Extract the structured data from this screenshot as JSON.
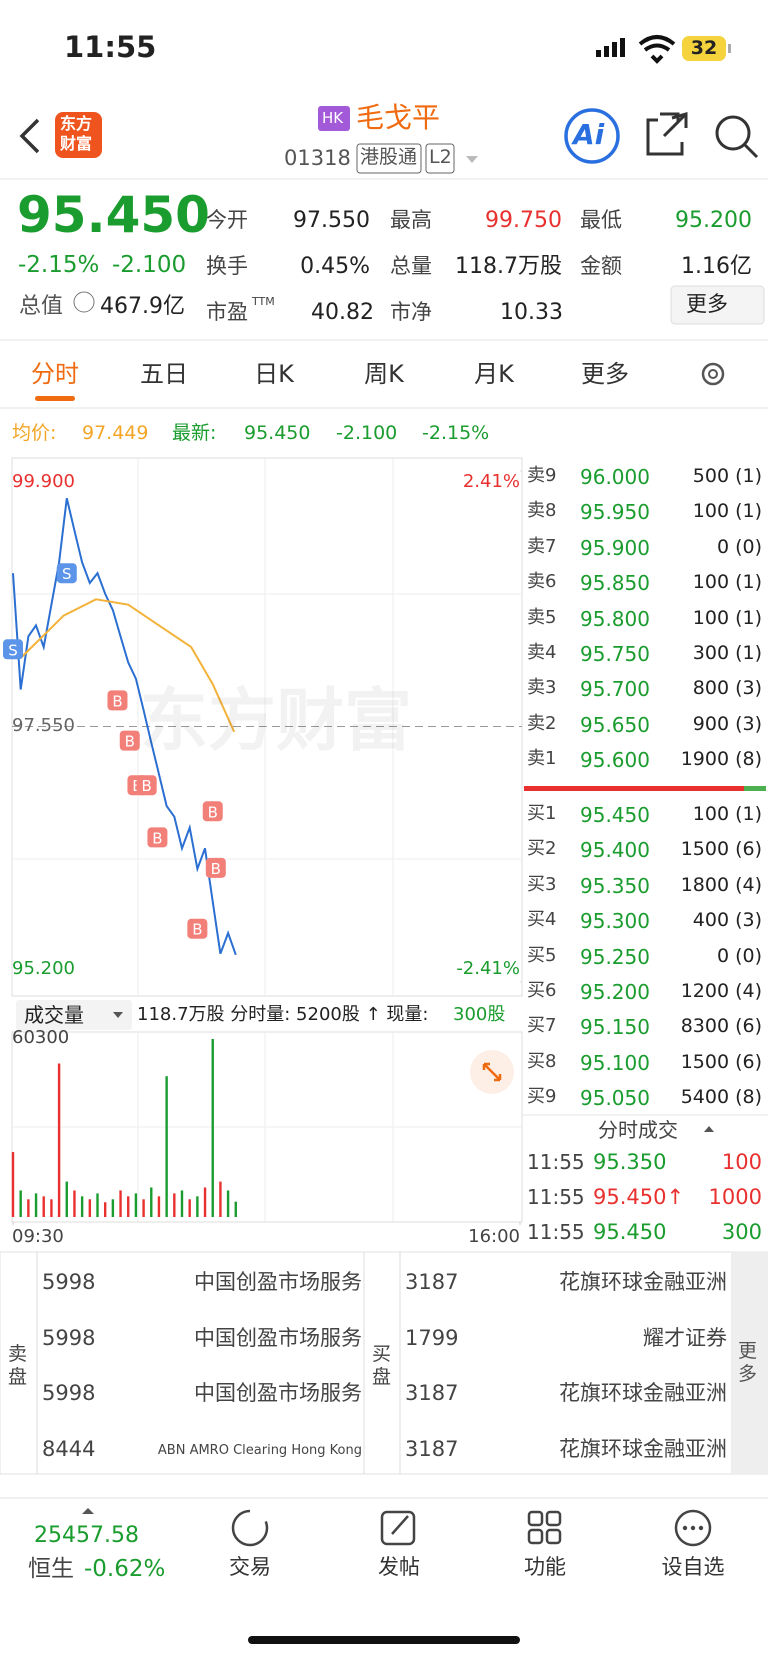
{
  "status_bar": {
    "time": "11:55",
    "battery": "32"
  },
  "header": {
    "logo": [
      "东方",
      "财富"
    ],
    "market_badge": "HK",
    "name": "毛戈平",
    "code": "01318",
    "tag": "港股通",
    "level": "L2",
    "ai": "Ai"
  },
  "quote": {
    "price": "95.450",
    "change_pct": "-2.15%",
    "change": "-2.100",
    "market_cap_label": "总值",
    "market_cap": "467.9亿",
    "stats": [
      {
        "label": "今开",
        "value": "97.550"
      },
      {
        "label": "最高",
        "value": "99.750"
      },
      {
        "label": "最低",
        "value": "95.200"
      },
      {
        "label": "换手",
        "value": "0.45%"
      },
      {
        "label": "总量",
        "value": "118.7万股"
      },
      {
        "label": "金额",
        "value": "1.16亿"
      },
      {
        "label": "市盈",
        "sup": "TTM",
        "value": "40.82"
      },
      {
        "label": "市净",
        "value": "10.33"
      }
    ],
    "more": "更多"
  },
  "tabs": [
    "分时",
    "五日",
    "日K",
    "周K",
    "月K",
    "更多"
  ],
  "summary": {
    "avg_label": "均价:",
    "avg": "97.449",
    "last_label": "最新:",
    "last": "95.450",
    "change": "-2.100",
    "change_pct": "-2.15%"
  },
  "watermark": "东方财富",
  "chart_data": [
    {
      "type": "line",
      "xlim": [
        0,
        330
      ],
      "ylim": [
        95.2,
        99.9
      ],
      "y2lim": [
        -2.41,
        2.41
      ],
      "yticks": [
        {
          "value": 99.9,
          "label": "99.900"
        },
        {
          "value": 97.55,
          "label": "97.550"
        },
        {
          "value": 95.2,
          "label": "95.200"
        }
      ],
      "y2ticks": [
        {
          "value": 2.41,
          "label": "2.41%"
        },
        {
          "value": -2.41,
          "label": "-2.41%"
        }
      ],
      "x": [
        0,
        5,
        10,
        15,
        20,
        25,
        30,
        35,
        40,
        45,
        50,
        55,
        60,
        65,
        70,
        75,
        80,
        85,
        90,
        95,
        100,
        105,
        110,
        115,
        120,
        125,
        130,
        135,
        140,
        145
      ],
      "series": [
        {
          "color": "#2a6fd1",
          "values": [
            98.96,
            97.89,
            98.38,
            98.48,
            98.28,
            98.67,
            99.06,
            99.65,
            99.35,
            99.06,
            98.87,
            98.96,
            98.77,
            98.62,
            98.38,
            98.14,
            97.99,
            97.7,
            97.4,
            97.11,
            96.82,
            96.72,
            96.43,
            96.62,
            96.24,
            96.43,
            95.94,
            95.46,
            95.65,
            95.45
          ]
        },
        {
          "color": "#f3b23a",
          "x": [
            5,
            33,
            54,
            75,
            95,
            116,
            130,
            144
          ],
          "values": [
            98.18,
            98.57,
            98.72,
            98.67,
            98.48,
            98.28,
            97.94,
            97.5
          ]
        }
      ],
      "markers": [
        {
          "label": "S",
          "x": 0,
          "value": 98.26
        },
        {
          "label": "S",
          "x": 35,
          "value": 98.96
        },
        {
          "label": "B",
          "x": 68,
          "value": 97.79
        },
        {
          "label": "B",
          "x": 76,
          "value": 97.42
        },
        {
          "label": "B",
          "x": 81,
          "value": 97.01
        },
        {
          "label": "B",
          "x": 87,
          "value": 97.01
        },
        {
          "label": "B",
          "x": 94,
          "value": 96.53
        },
        {
          "label": "B",
          "x": 120,
          "value": 95.69
        },
        {
          "label": "B",
          "x": 130,
          "value": 96.77
        },
        {
          "label": "B",
          "x": 132,
          "value": 96.25
        }
      ]
    },
    {
      "type": "bar",
      "xlim": [
        0,
        330
      ],
      "ylim": [
        0,
        60300
      ],
      "yticks": [
        60300
      ],
      "xticks": [
        {
          "value": 0,
          "label": "09:30"
        },
        {
          "value": 330,
          "label": "16:00"
        }
      ],
      "x": [
        0,
        5,
        10,
        15,
        20,
        25,
        30,
        35,
        40,
        45,
        50,
        55,
        60,
        65,
        70,
        75,
        80,
        85,
        90,
        95,
        100,
        105,
        110,
        115,
        120,
        125,
        130,
        135,
        140,
        145
      ],
      "values": [
        22000,
        9000,
        6000,
        8000,
        7000,
        6000,
        52000,
        12000,
        9000,
        7000,
        6000,
        8000,
        5000,
        6000,
        9000,
        7000,
        8000,
        6000,
        10000,
        7000,
        47700,
        8000,
        9000,
        6000,
        7000,
        10000,
        60300,
        12000,
        9000,
        5200
      ],
      "colors": [
        "#e8312f",
        "#1a9c2e",
        "#e8312f",
        "#1a9c2e",
        "#e8312f",
        "#e8312f",
        "#e8312f",
        "#1a9c2e",
        "#e8312f",
        "#1a9c2e",
        "#e8312f",
        "#1a9c2e",
        "#e8312f",
        "#1a9c2e",
        "#e8312f",
        "#e8312f",
        "#1a9c2e",
        "#e8312f",
        "#1a9c2e",
        "#e8312f",
        "#1a9c2e",
        "#e8312f",
        "#1a9c2e",
        "#e8312f",
        "#1a9c2e",
        "#e8312f",
        "#1a9c2e",
        "#e8312f",
        "#1a9c2e",
        "#1a9c2e"
      ]
    }
  ],
  "volume_header": {
    "selector": "成交量",
    "text": "118.7万股 分时量: 5200股 ↑ 现量:",
    "current": "300股"
  },
  "order_book": {
    "asks": [
      {
        "label": "卖9",
        "price": "96.000",
        "volume": "500 (1)"
      },
      {
        "label": "卖8",
        "price": "95.950",
        "volume": "100 (1)"
      },
      {
        "label": "卖7",
        "price": "95.900",
        "volume": "0 (0)"
      },
      {
        "label": "卖6",
        "price": "95.850",
        "volume": "100 (1)"
      },
      {
        "label": "卖5",
        "price": "95.800",
        "volume": "100 (1)"
      },
      {
        "label": "卖4",
        "price": "95.750",
        "volume": "300 (1)"
      },
      {
        "label": "卖3",
        "price": "95.700",
        "volume": "800 (3)"
      },
      {
        "label": "卖2",
        "price": "95.650",
        "volume": "900 (3)"
      },
      {
        "label": "卖1",
        "price": "95.600",
        "volume": "1900 (8)"
      }
    ],
    "bids": [
      {
        "label": "买1",
        "price": "95.450",
        "volume": "100 (1)"
      },
      {
        "label": "买2",
        "price": "95.400",
        "volume": "1500 (6)"
      },
      {
        "label": "买3",
        "price": "95.350",
        "volume": "1800 (4)"
      },
      {
        "label": "买4",
        "price": "95.300",
        "volume": "400 (3)"
      },
      {
        "label": "买5",
        "price": "95.250",
        "volume": "0 (0)"
      },
      {
        "label": "买6",
        "price": "95.200",
        "volume": "1200 (4)"
      },
      {
        "label": "买7",
        "price": "95.150",
        "volume": "8300 (6)"
      },
      {
        "label": "买8",
        "price": "95.100",
        "volume": "1500 (6)"
      },
      {
        "label": "买9",
        "price": "95.050",
        "volume": "5400 (8)"
      }
    ]
  },
  "trades": {
    "title": "分时成交",
    "rows": [
      {
        "time": "11:55",
        "price": "95.350",
        "volume": "100",
        "color": "#1a9c2e",
        "vcolor": "#e8312f"
      },
      {
        "time": "11:55",
        "price": "95.450↑",
        "volume": "1000",
        "color": "#e8312f",
        "vcolor": "#e8312f"
      },
      {
        "time": "11:55",
        "price": "95.450",
        "volume": "300",
        "color": "#1a9c2e",
        "vcolor": "#1a9c2e"
      }
    ]
  },
  "brokers": {
    "sell_label": "卖盘",
    "sell": [
      {
        "id": "5998",
        "name": "中国创盈市场服务"
      },
      {
        "id": "5998",
        "name": "中国创盈市场服务"
      },
      {
        "id": "5998",
        "name": "中国创盈市场服务"
      },
      {
        "id": "8444",
        "name": "ABN AMRO Clearing Hong Kong"
      }
    ],
    "buy_label": "买盘",
    "buy": [
      {
        "id": "3187",
        "name": "花旗环球金融亚洲"
      },
      {
        "id": "1799",
        "name": "耀才证券"
      },
      {
        "id": "3187",
        "name": "花旗环球金融亚洲"
      },
      {
        "id": "3187",
        "name": "花旗环球金融亚洲"
      }
    ],
    "more": "更多"
  },
  "bottom": {
    "index_value": "25457.58",
    "index_name": "恒生",
    "index_change": "-0.62%",
    "nav": [
      "交易",
      "发帖",
      "功能",
      "设自选"
    ]
  }
}
